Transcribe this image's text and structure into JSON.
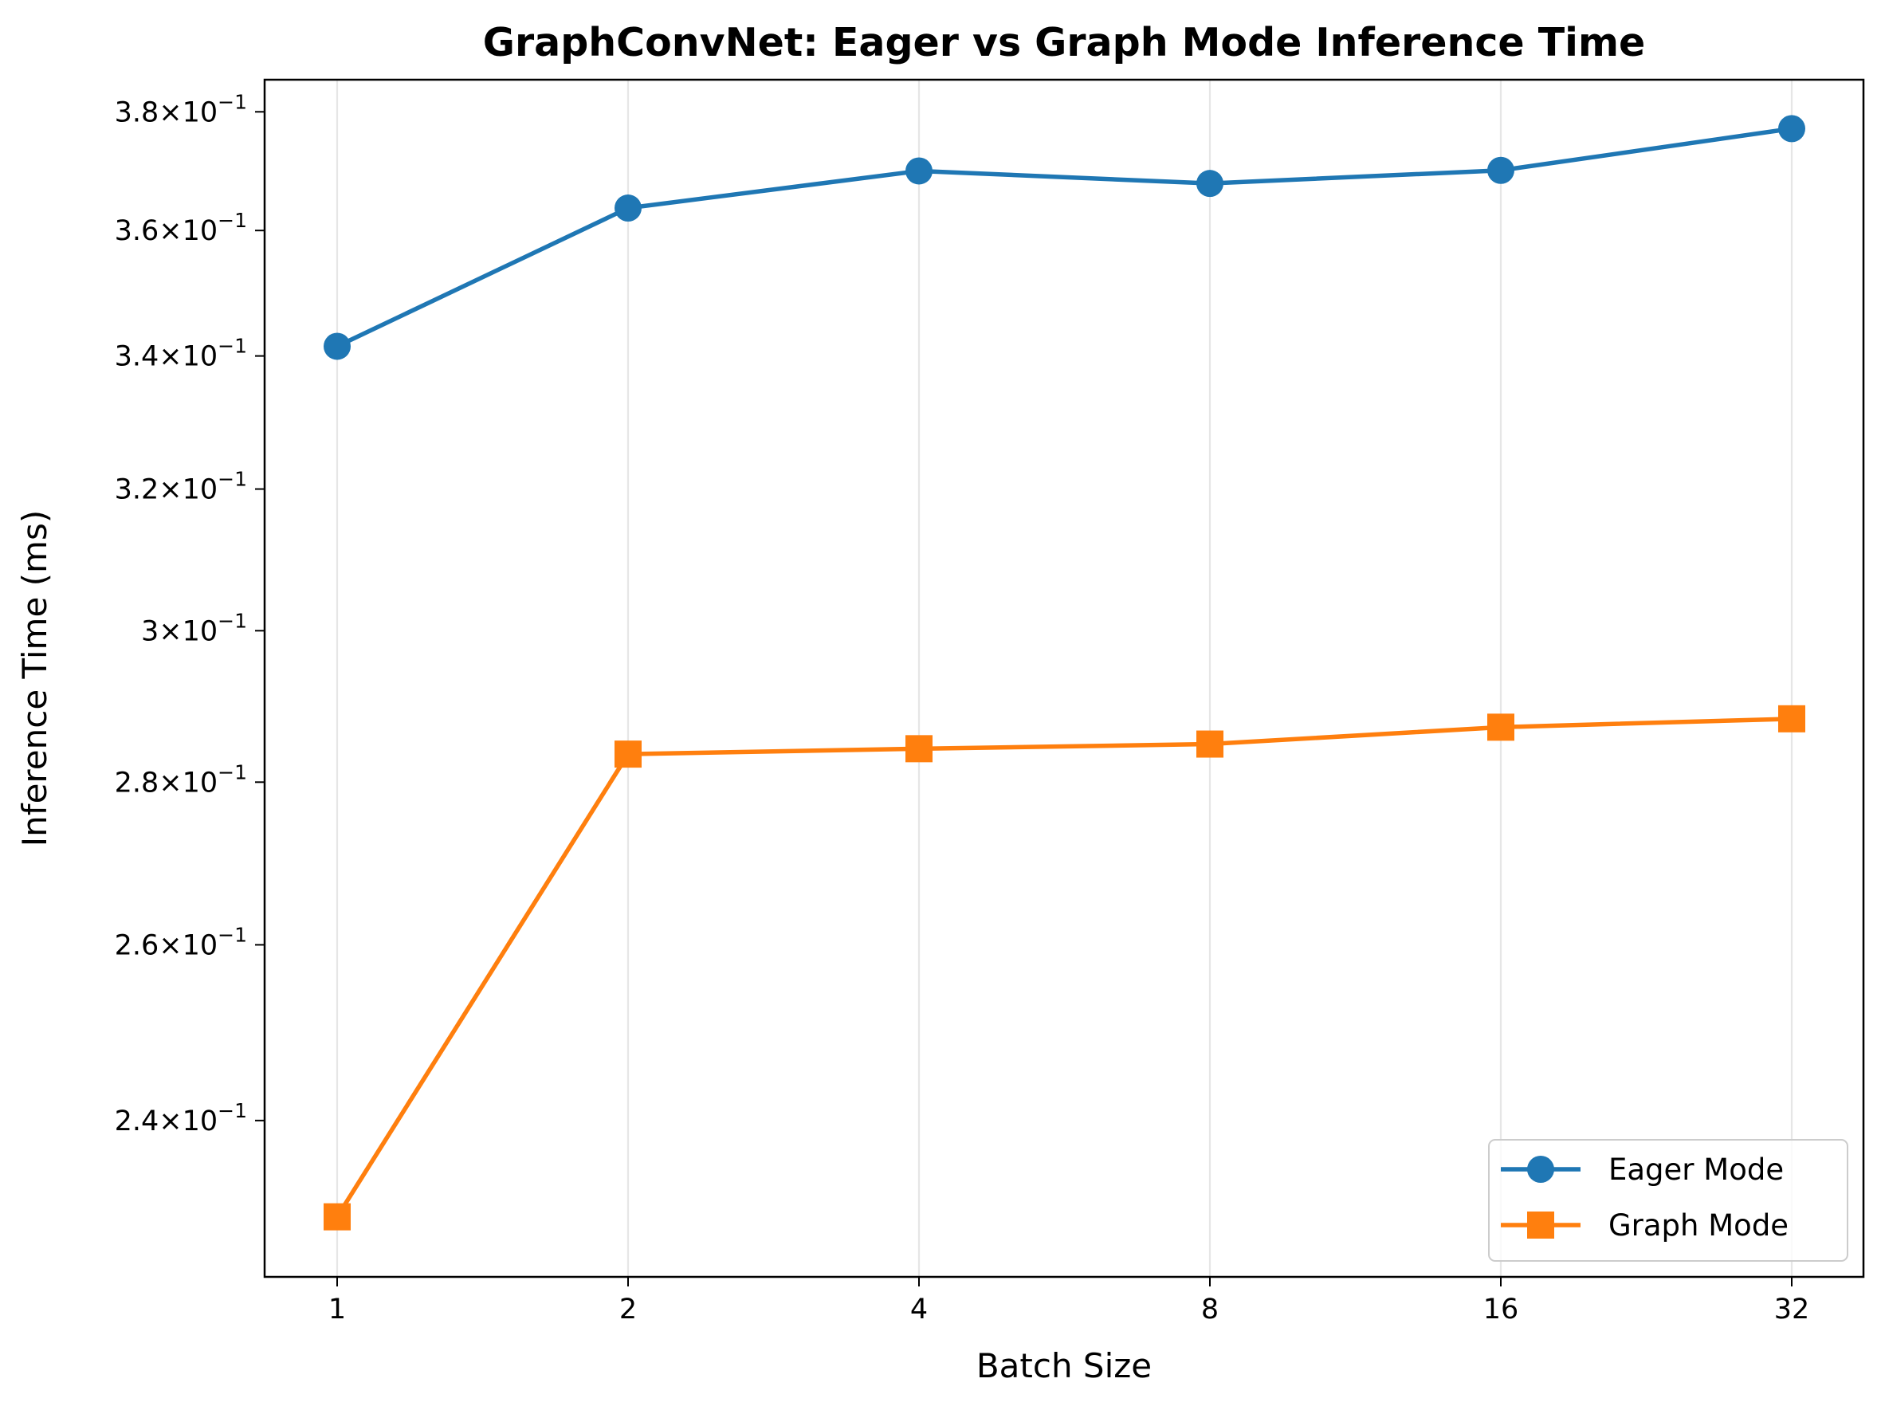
{
  "chart_data": {
    "type": "line",
    "title": "GraphConvNet: Eager vs Graph Mode Inference Time",
    "xlabel": "Batch Size",
    "ylabel": "Inference Time (ms)",
    "x_scale": "log2",
    "y_scale": "log",
    "categories": [
      "1",
      "2",
      "4",
      "8",
      "16",
      "32"
    ],
    "x": [
      1,
      2,
      4,
      8,
      16,
      32
    ],
    "ylim": [
      0.2235,
      0.3856
    ],
    "y_ticks": [
      {
        "value": 0.24,
        "mantissa": "2.4",
        "exponent": "−1"
      },
      {
        "value": 0.26,
        "mantissa": "2.6",
        "exponent": "−1"
      },
      {
        "value": 0.28,
        "mantissa": "2.8",
        "exponent": "−1"
      },
      {
        "value": 0.3,
        "mantissa": "3",
        "exponent": "−1"
      },
      {
        "value": 0.32,
        "mantissa": "3.2",
        "exponent": "−1"
      },
      {
        "value": 0.34,
        "mantissa": "3.4",
        "exponent": "−1"
      },
      {
        "value": 0.36,
        "mantissa": "3.6",
        "exponent": "−1"
      },
      {
        "value": 0.38,
        "mantissa": "3.8",
        "exponent": "−1"
      }
    ],
    "grid": "vertical",
    "legend_position": "bottom-right",
    "series": [
      {
        "name": "Eager Mode",
        "color": "#1f77b4",
        "marker": "circle",
        "values": [
          0.3415,
          0.3637,
          0.3699,
          0.3678,
          0.37,
          0.3771
        ]
      },
      {
        "name": "Graph Mode",
        "color": "#ff7f0e",
        "marker": "square",
        "values": [
          0.2297,
          0.2836,
          0.2843,
          0.2849,
          0.2871,
          0.2882
        ]
      }
    ]
  }
}
